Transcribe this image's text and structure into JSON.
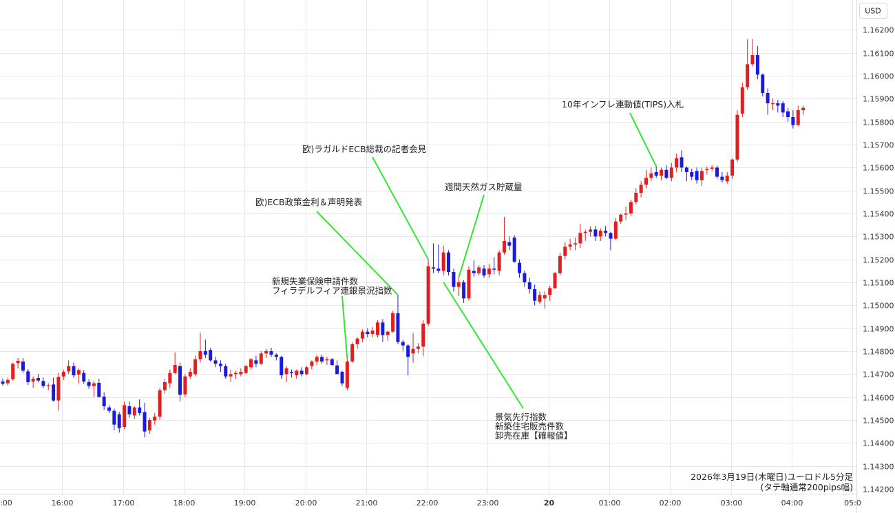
{
  "chart_data": {
    "type": "candlestick",
    "currency_label": "USD",
    "caption_lines": [
      "2026年3月19日(木曜日)ユーロドル5分足",
      "(タテ軸通常200pips幅)"
    ],
    "ylim": [
      1.1417,
      1.163
    ],
    "y_ticks": [
      "1.16200",
      "1.16100",
      "1.16000",
      "1.15900",
      "1.15800",
      "1.15700",
      "1.15600",
      "1.15500",
      "1.15400",
      "1.15300",
      "1.15200",
      "1.15100",
      "1.15000",
      "1.14900",
      "1.14800",
      "1.14700",
      "1.14600",
      "1.14500",
      "1.14400",
      "1.14300",
      "1.14200"
    ],
    "x_ticks": [
      ":00",
      "16:00",
      "17:00",
      "18:00",
      "19:00",
      "20:00",
      "21:00",
      "22:00",
      "23:00",
      "20",
      "01:00",
      "02:00",
      "03:00",
      "04:00",
      "05:0"
    ],
    "grid": true,
    "colors": {
      "up": "#e02020",
      "down": "#1a1ae0",
      "annotation_line": "#2ee82e",
      "grid": "#e4e8ee"
    },
    "candles": [
      {
        "o": 1.14668,
        "h": 1.14681,
        "l": 1.1465,
        "c": 1.14658
      },
      {
        "o": 1.1466,
        "h": 1.14685,
        "l": 1.1465,
        "c": 1.14675
      },
      {
        "o": 1.14678,
        "h": 1.1475,
        "l": 1.14672,
        "c": 1.14745
      },
      {
        "o": 1.14748,
        "h": 1.1477,
        "l": 1.14725,
        "c": 1.14758
      },
      {
        "o": 1.14755,
        "h": 1.1477,
        "l": 1.14705,
        "c": 1.14715
      },
      {
        "o": 1.14712,
        "h": 1.14722,
        "l": 1.14652,
        "c": 1.14665
      },
      {
        "o": 1.14668,
        "h": 1.1469,
        "l": 1.1464,
        "c": 1.1468
      },
      {
        "o": 1.14683,
        "h": 1.147,
        "l": 1.14665,
        "c": 1.14672
      },
      {
        "o": 1.1467,
        "h": 1.14685,
        "l": 1.1464,
        "c": 1.14648
      },
      {
        "o": 1.1465,
        "h": 1.1466,
        "l": 1.1463,
        "c": 1.14652
      },
      {
        "o": 1.14655,
        "h": 1.14685,
        "l": 1.1458,
        "c": 1.14585
      },
      {
        "o": 1.14585,
        "h": 1.14705,
        "l": 1.1454,
        "c": 1.14688
      },
      {
        "o": 1.1469,
        "h": 1.1472,
        "l": 1.14675,
        "c": 1.1471
      },
      {
        "o": 1.14712,
        "h": 1.1476,
        "l": 1.147,
        "c": 1.14735
      },
      {
        "o": 1.14735,
        "h": 1.1475,
        "l": 1.14685,
        "c": 1.14695
      },
      {
        "o": 1.14698,
        "h": 1.14725,
        "l": 1.1466,
        "c": 1.14718
      },
      {
        "o": 1.14705,
        "h": 1.14718,
        "l": 1.14658,
        "c": 1.14668
      },
      {
        "o": 1.14665,
        "h": 1.14678,
        "l": 1.14636,
        "c": 1.14648
      },
      {
        "o": 1.14648,
        "h": 1.1467,
        "l": 1.146,
        "c": 1.1466
      },
      {
        "o": 1.14662,
        "h": 1.1468,
        "l": 1.14615,
        "c": 1.146
      },
      {
        "o": 1.14602,
        "h": 1.1462,
        "l": 1.14545,
        "c": 1.1456
      },
      {
        "o": 1.14555,
        "h": 1.14565,
        "l": 1.1453,
        "c": 1.1454
      },
      {
        "o": 1.1454,
        "h": 1.1455,
        "l": 1.14455,
        "c": 1.1448
      },
      {
        "o": 1.14525,
        "h": 1.14535,
        "l": 1.14445,
        "c": 1.14465
      },
      {
        "o": 1.1447,
        "h": 1.1458,
        "l": 1.1446,
        "c": 1.14565
      },
      {
        "o": 1.1456,
        "h": 1.1458,
        "l": 1.1451,
        "c": 1.14525
      },
      {
        "o": 1.1452,
        "h": 1.1456,
        "l": 1.14505,
        "c": 1.14555
      },
      {
        "o": 1.14555,
        "h": 1.1459,
        "l": 1.1452,
        "c": 1.1453
      },
      {
        "o": 1.14535,
        "h": 1.14575,
        "l": 1.14425,
        "c": 1.1445
      },
      {
        "o": 1.14455,
        "h": 1.1451,
        "l": 1.1444,
        "c": 1.145
      },
      {
        "o": 1.14498,
        "h": 1.1453,
        "l": 1.1448,
        "c": 1.14515
      },
      {
        "o": 1.14515,
        "h": 1.1464,
        "l": 1.145,
        "c": 1.1463
      },
      {
        "o": 1.1463,
        "h": 1.1468,
        "l": 1.14615,
        "c": 1.14665
      },
      {
        "o": 1.1466,
        "h": 1.1472,
        "l": 1.1464,
        "c": 1.14705
      },
      {
        "o": 1.14705,
        "h": 1.14795,
        "l": 1.147,
        "c": 1.1474
      },
      {
        "o": 1.14735,
        "h": 1.1475,
        "l": 1.1458,
        "c": 1.1461
      },
      {
        "o": 1.14612,
        "h": 1.147,
        "l": 1.146,
        "c": 1.1469
      },
      {
        "o": 1.1469,
        "h": 1.14725,
        "l": 1.1468,
        "c": 1.1471
      },
      {
        "o": 1.147,
        "h": 1.1478,
        "l": 1.1469,
        "c": 1.14765
      },
      {
        "o": 1.14765,
        "h": 1.1488,
        "l": 1.1475,
        "c": 1.148
      },
      {
        "o": 1.148,
        "h": 1.1485,
        "l": 1.1477,
        "c": 1.14785
      },
      {
        "o": 1.14805,
        "h": 1.14815,
        "l": 1.14755,
        "c": 1.1476
      },
      {
        "o": 1.1476,
        "h": 1.14775,
        "l": 1.1473,
        "c": 1.14745
      },
      {
        "o": 1.14745,
        "h": 1.1476,
        "l": 1.1471,
        "c": 1.14735
      },
      {
        "o": 1.14735,
        "h": 1.14745,
        "l": 1.1468,
        "c": 1.1469
      },
      {
        "o": 1.1469,
        "h": 1.1472,
        "l": 1.14665,
        "c": 1.147
      },
      {
        "o": 1.147,
        "h": 1.14715,
        "l": 1.1468,
        "c": 1.14705
      },
      {
        "o": 1.147,
        "h": 1.14725,
        "l": 1.1469,
        "c": 1.1471
      },
      {
        "o": 1.14705,
        "h": 1.1474,
        "l": 1.147,
        "c": 1.14735
      },
      {
        "o": 1.1473,
        "h": 1.1477,
        "l": 1.1472,
        "c": 1.14765
      },
      {
        "o": 1.1476,
        "h": 1.1478,
        "l": 1.1473,
        "c": 1.14745
      },
      {
        "o": 1.14745,
        "h": 1.148,
        "l": 1.1474,
        "c": 1.1479
      },
      {
        "o": 1.1479,
        "h": 1.1481,
        "l": 1.1477,
        "c": 1.148
      },
      {
        "o": 1.148,
        "h": 1.14815,
        "l": 1.14775,
        "c": 1.14785
      },
      {
        "o": 1.14785,
        "h": 1.1479,
        "l": 1.1476,
        "c": 1.14775
      },
      {
        "o": 1.14775,
        "h": 1.1478,
        "l": 1.1468,
        "c": 1.14695
      },
      {
        "o": 1.147,
        "h": 1.14735,
        "l": 1.14665,
        "c": 1.14725
      },
      {
        "o": 1.1471,
        "h": 1.1472,
        "l": 1.14685,
        "c": 1.14705
      },
      {
        "o": 1.14695,
        "h": 1.1472,
        "l": 1.1468,
        "c": 1.14715
      },
      {
        "o": 1.14715,
        "h": 1.1473,
        "l": 1.1469,
        "c": 1.147
      },
      {
        "o": 1.147,
        "h": 1.14735,
        "l": 1.14695,
        "c": 1.1473
      },
      {
        "o": 1.14735,
        "h": 1.1476,
        "l": 1.1472,
        "c": 1.14755
      },
      {
        "o": 1.14755,
        "h": 1.14785,
        "l": 1.1474,
        "c": 1.14775
      },
      {
        "o": 1.14775,
        "h": 1.14785,
        "l": 1.14745,
        "c": 1.14755
      },
      {
        "o": 1.1476,
        "h": 1.14775,
        "l": 1.1474,
        "c": 1.14765
      },
      {
        "o": 1.14765,
        "h": 1.1477,
        "l": 1.14735,
        "c": 1.1474
      },
      {
        "o": 1.14738,
        "h": 1.1476,
        "l": 1.147,
        "c": 1.147
      },
      {
        "o": 1.1471,
        "h": 1.14715,
        "l": 1.1465,
        "c": 1.1466
      },
      {
        "o": 1.1464,
        "h": 1.14765,
        "l": 1.1463,
        "c": 1.14755
      },
      {
        "o": 1.14755,
        "h": 1.1484,
        "l": 1.1475,
        "c": 1.1483
      },
      {
        "o": 1.1483,
        "h": 1.1486,
        "l": 1.1481,
        "c": 1.14855
      },
      {
        "o": 1.14855,
        "h": 1.14895,
        "l": 1.1484,
        "c": 1.14885
      },
      {
        "o": 1.14885,
        "h": 1.149,
        "l": 1.1486,
        "c": 1.14875
      },
      {
        "o": 1.14875,
        "h": 1.14905,
        "l": 1.1486,
        "c": 1.1489
      },
      {
        "o": 1.1487,
        "h": 1.14935,
        "l": 1.1486,
        "c": 1.14925
      },
      {
        "o": 1.14925,
        "h": 1.1494,
        "l": 1.1484,
        "c": 1.1487
      },
      {
        "o": 1.1487,
        "h": 1.1489,
        "l": 1.14845,
        "c": 1.14885
      },
      {
        "o": 1.14885,
        "h": 1.14975,
        "l": 1.1488,
        "c": 1.14965
      },
      {
        "o": 1.14965,
        "h": 1.15045,
        "l": 1.1483,
        "c": 1.1484
      },
      {
        "o": 1.1484,
        "h": 1.1485,
        "l": 1.148,
        "c": 1.14825
      },
      {
        "o": 1.14825,
        "h": 1.1483,
        "l": 1.14695,
        "c": 1.14775
      },
      {
        "o": 1.1479,
        "h": 1.1488,
        "l": 1.1475,
        "c": 1.1481
      },
      {
        "o": 1.1481,
        "h": 1.14835,
        "l": 1.1479,
        "c": 1.1482
      },
      {
        "o": 1.1482,
        "h": 1.14935,
        "l": 1.1478,
        "c": 1.1492
      },
      {
        "o": 1.1492,
        "h": 1.152,
        "l": 1.1491,
        "c": 1.1517
      },
      {
        "o": 1.15165,
        "h": 1.1527,
        "l": 1.1514,
        "c": 1.1516
      },
      {
        "o": 1.1516,
        "h": 1.15265,
        "l": 1.1514,
        "c": 1.1515
      },
      {
        "o": 1.1515,
        "h": 1.1526,
        "l": 1.1513,
        "c": 1.1523
      },
      {
        "o": 1.1523,
        "h": 1.1524,
        "l": 1.1513,
        "c": 1.15145
      },
      {
        "o": 1.15145,
        "h": 1.1516,
        "l": 1.1506,
        "c": 1.1508
      },
      {
        "o": 1.1508,
        "h": 1.1512,
        "l": 1.1504,
        "c": 1.151
      },
      {
        "o": 1.151,
        "h": 1.1511,
        "l": 1.1501,
        "c": 1.1503
      },
      {
        "o": 1.1503,
        "h": 1.1517,
        "l": 1.1502,
        "c": 1.15155
      },
      {
        "o": 1.1515,
        "h": 1.15195,
        "l": 1.15125,
        "c": 1.1514
      },
      {
        "o": 1.1514,
        "h": 1.15175,
        "l": 1.1513,
        "c": 1.15165
      },
      {
        "o": 1.1516,
        "h": 1.15175,
        "l": 1.1512,
        "c": 1.1513
      },
      {
        "o": 1.15135,
        "h": 1.1518,
        "l": 1.1512,
        "c": 1.1516
      },
      {
        "o": 1.1516,
        "h": 1.1521,
        "l": 1.15135,
        "c": 1.15155
      },
      {
        "o": 1.1515,
        "h": 1.1524,
        "l": 1.1513,
        "c": 1.1523
      },
      {
        "o": 1.1523,
        "h": 1.15385,
        "l": 1.1522,
        "c": 1.1528
      },
      {
        "o": 1.15275,
        "h": 1.153,
        "l": 1.1524,
        "c": 1.1526
      },
      {
        "o": 1.15295,
        "h": 1.15305,
        "l": 1.15185,
        "c": 1.1519
      },
      {
        "o": 1.15185,
        "h": 1.152,
        "l": 1.1512,
        "c": 1.1514
      },
      {
        "o": 1.1514,
        "h": 1.1515,
        "l": 1.1508,
        "c": 1.151
      },
      {
        "o": 1.151,
        "h": 1.1512,
        "l": 1.1505,
        "c": 1.1507
      },
      {
        "o": 1.1507,
        "h": 1.1509,
        "l": 1.15,
        "c": 1.1502
      },
      {
        "o": 1.15015,
        "h": 1.1506,
        "l": 1.15005,
        "c": 1.15045
      },
      {
        "o": 1.1503,
        "h": 1.1506,
        "l": 1.14985,
        "c": 1.15045
      },
      {
        "o": 1.15045,
        "h": 1.15085,
        "l": 1.1502,
        "c": 1.15075
      },
      {
        "o": 1.15075,
        "h": 1.15145,
        "l": 1.1507,
        "c": 1.1514
      },
      {
        "o": 1.1514,
        "h": 1.1523,
        "l": 1.1513,
        "c": 1.15215
      },
      {
        "o": 1.15215,
        "h": 1.15275,
        "l": 1.152,
        "c": 1.15255
      },
      {
        "o": 1.15255,
        "h": 1.1529,
        "l": 1.1524,
        "c": 1.15265
      },
      {
        "o": 1.15265,
        "h": 1.15295,
        "l": 1.1524,
        "c": 1.1527
      },
      {
        "o": 1.1527,
        "h": 1.15355,
        "l": 1.1525,
        "c": 1.15315
      },
      {
        "o": 1.15315,
        "h": 1.1533,
        "l": 1.1528,
        "c": 1.1532
      },
      {
        "o": 1.1532,
        "h": 1.15345,
        "l": 1.153,
        "c": 1.1533
      },
      {
        "o": 1.1533,
        "h": 1.15345,
        "l": 1.1528,
        "c": 1.153
      },
      {
        "o": 1.153,
        "h": 1.15335,
        "l": 1.1528,
        "c": 1.15325
      },
      {
        "o": 1.15325,
        "h": 1.15345,
        "l": 1.153,
        "c": 1.15315
      },
      {
        "o": 1.15315,
        "h": 1.1532,
        "l": 1.1524,
        "c": 1.1529
      },
      {
        "o": 1.1529,
        "h": 1.1538,
        "l": 1.15285,
        "c": 1.15365
      },
      {
        "o": 1.15365,
        "h": 1.154,
        "l": 1.15355,
        "c": 1.15395
      },
      {
        "o": 1.15395,
        "h": 1.1543,
        "l": 1.1537,
        "c": 1.154
      },
      {
        "o": 1.154,
        "h": 1.1546,
        "l": 1.1539,
        "c": 1.1545
      },
      {
        "o": 1.1545,
        "h": 1.1551,
        "l": 1.1544,
        "c": 1.1549
      },
      {
        "o": 1.1549,
        "h": 1.1554,
        "l": 1.1547,
        "c": 1.15525
      },
      {
        "o": 1.15525,
        "h": 1.1559,
        "l": 1.1551,
        "c": 1.15555
      },
      {
        "o": 1.15555,
        "h": 1.156,
        "l": 1.1554,
        "c": 1.15575
      },
      {
        "o": 1.1558,
        "h": 1.15605,
        "l": 1.15555,
        "c": 1.15565
      },
      {
        "o": 1.15565,
        "h": 1.156,
        "l": 1.15545,
        "c": 1.1559
      },
      {
        "o": 1.1559,
        "h": 1.1561,
        "l": 1.1555,
        "c": 1.15555
      },
      {
        "o": 1.15555,
        "h": 1.1562,
        "l": 1.1554,
        "c": 1.156
      },
      {
        "o": 1.156,
        "h": 1.1566,
        "l": 1.1558,
        "c": 1.1564
      },
      {
        "o": 1.15645,
        "h": 1.15675,
        "l": 1.1558,
        "c": 1.156
      },
      {
        "o": 1.156,
        "h": 1.15605,
        "l": 1.1554,
        "c": 1.1558
      },
      {
        "o": 1.1558,
        "h": 1.15595,
        "l": 1.15545,
        "c": 1.1556
      },
      {
        "o": 1.15585,
        "h": 1.156,
        "l": 1.1553,
        "c": 1.15545
      },
      {
        "o": 1.15545,
        "h": 1.156,
        "l": 1.1552,
        "c": 1.15585
      },
      {
        "o": 1.1559,
        "h": 1.15605,
        "l": 1.1557,
        "c": 1.15595
      },
      {
        "o": 1.15595,
        "h": 1.1561,
        "l": 1.15585,
        "c": 1.156
      },
      {
        "o": 1.156,
        "h": 1.1561,
        "l": 1.1555,
        "c": 1.1556
      },
      {
        "o": 1.1556,
        "h": 1.1558,
        "l": 1.15535,
        "c": 1.15545
      },
      {
        "o": 1.1554,
        "h": 1.1558,
        "l": 1.1553,
        "c": 1.15565
      },
      {
        "o": 1.15565,
        "h": 1.1564,
        "l": 1.1555,
        "c": 1.15635
      },
      {
        "o": 1.15635,
        "h": 1.1585,
        "l": 1.15625,
        "c": 1.1583
      },
      {
        "o": 1.15835,
        "h": 1.1597,
        "l": 1.1582,
        "c": 1.1595
      },
      {
        "o": 1.1595,
        "h": 1.1616,
        "l": 1.1594,
        "c": 1.1605
      },
      {
        "o": 1.1605,
        "h": 1.1616,
        "l": 1.1604,
        "c": 1.1609
      },
      {
        "o": 1.1609,
        "h": 1.1613,
        "l": 1.15985,
        "c": 1.16005
      },
      {
        "o": 1.16005,
        "h": 1.1601,
        "l": 1.1591,
        "c": 1.15925
      },
      {
        "o": 1.15925,
        "h": 1.15945,
        "l": 1.1583,
        "c": 1.1588
      },
      {
        "o": 1.1588,
        "h": 1.159,
        "l": 1.1585,
        "c": 1.1588
      },
      {
        "o": 1.1588,
        "h": 1.15895,
        "l": 1.1584,
        "c": 1.1587
      },
      {
        "o": 1.1588,
        "h": 1.1589,
        "l": 1.1582,
        "c": 1.1584
      },
      {
        "o": 1.15845,
        "h": 1.1586,
        "l": 1.158,
        "c": 1.1582
      },
      {
        "o": 1.1582,
        "h": 1.1585,
        "l": 1.1577,
        "c": 1.15785
      },
      {
        "o": 1.15785,
        "h": 1.1587,
        "l": 1.1578,
        "c": 1.1585
      },
      {
        "o": 1.1585,
        "h": 1.1587,
        "l": 1.1583,
        "c": 1.1586
      }
    ],
    "annotations": [
      {
        "lines": [
          "新規失業保険申請件数",
          "フィラデルフィア連銀景況指数"
        ],
        "candle": 68
      },
      {
        "lines": [
          "欧)ECB政策金利＆声明発表"
        ],
        "candle": 78
      },
      {
        "lines": [
          "欧)ラガルドECB総裁の記者会見"
        ],
        "candle": 84
      },
      {
        "lines": [
          "週間天然ガス貯蔵量"
        ],
        "candle": 90
      },
      {
        "lines": [
          "景気先行指数",
          "新築住宅販売件数",
          "卸売在庫【確報値】"
        ],
        "candle": 87
      },
      {
        "lines": [
          "10年インフレ連動値(TIPS)入札"
        ],
        "candle": 129
      }
    ]
  }
}
